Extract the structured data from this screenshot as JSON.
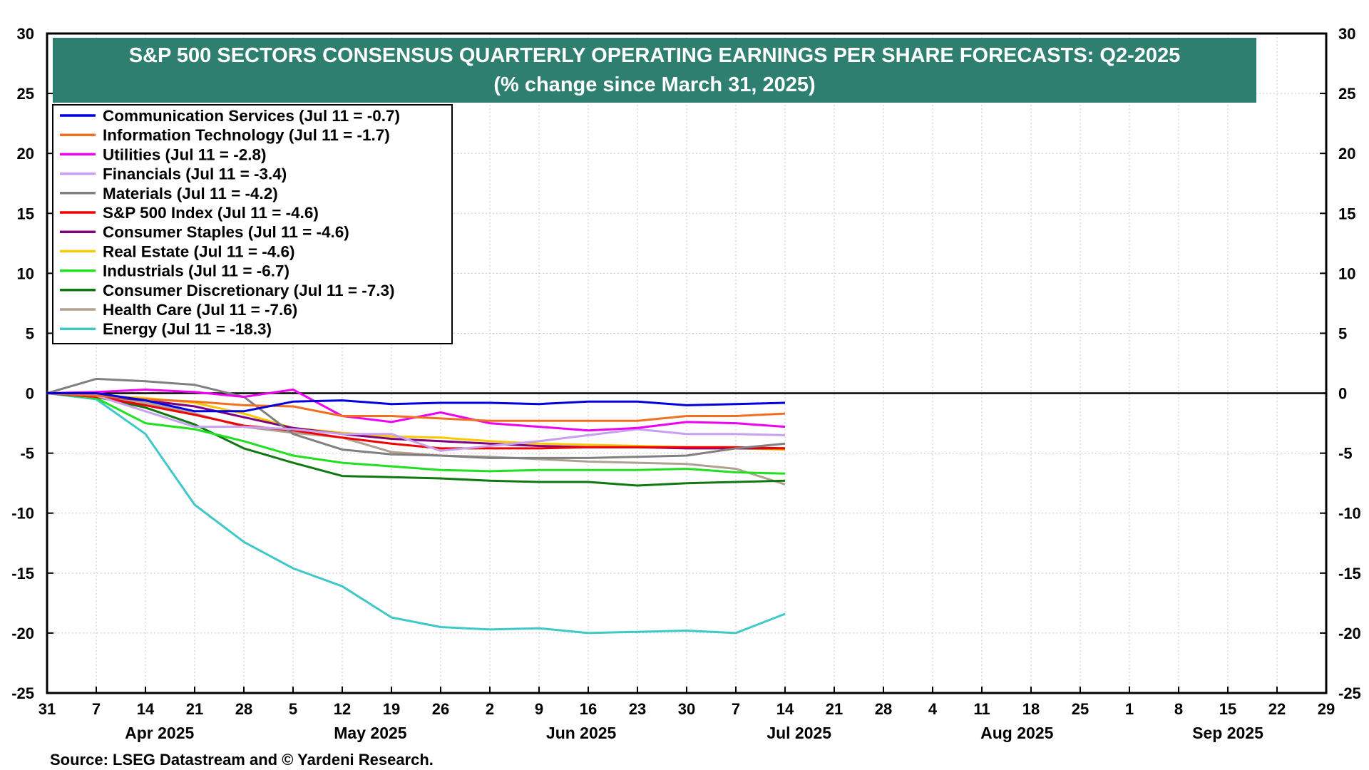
{
  "chart_data": {
    "type": "line",
    "title": "S&P 500 SECTORS CONSENSUS QUARTERLY OPERATING EARNINGS PER SHARE FORECASTS: Q2-2025",
    "subtitle": "(% change since March 31, 2025)",
    "source": "Source: LSEG Datastream and © Yardeni Research.",
    "ylim": [
      -25,
      30
    ],
    "yticks": [
      30,
      25,
      20,
      15,
      10,
      5,
      0,
      -5,
      -10,
      -15,
      -20,
      -25
    ],
    "xlim": [
      "2025-03-31",
      "2025-09-29"
    ],
    "x_tick_labels": [
      "31",
      "7",
      "14",
      "21",
      "28",
      "5",
      "12",
      "19",
      "26",
      "2",
      "9",
      "16",
      "23",
      "30",
      "7",
      "14",
      "21",
      "28",
      "4",
      "11",
      "18",
      "25",
      "1",
      "8",
      "15",
      "22",
      "29"
    ],
    "month_labels": [
      {
        "label": "Apr 2025",
        "center": "2025-04-16"
      },
      {
        "label": "May 2025",
        "center": "2025-05-16"
      },
      {
        "label": "Jun 2025",
        "center": "2025-06-15"
      },
      {
        "label": "Jul 2025",
        "center": "2025-07-16"
      },
      {
        "label": "Aug 2025",
        "center": "2025-08-16"
      },
      {
        "label": "Sep 2025",
        "center": "2025-09-15"
      }
    ],
    "zero_line": 0,
    "grid": true,
    "legend_position": "top-left",
    "x": [
      "2025-03-31",
      "2025-04-07",
      "2025-04-14",
      "2025-04-21",
      "2025-04-28",
      "2025-05-05",
      "2025-05-12",
      "2025-05-19",
      "2025-05-26",
      "2025-06-02",
      "2025-06-09",
      "2025-06-16",
      "2025-06-23",
      "2025-06-30",
      "2025-07-07",
      "2025-07-14"
    ],
    "series": [
      {
        "name": "Communication Services (Jul 11 = -0.7)",
        "color": "#0000e0",
        "values": [
          0,
          0,
          -0.6,
          -1.5,
          -1.5,
          -0.7,
          -0.6,
          -0.9,
          -0.8,
          -0.8,
          -0.9,
          -0.7,
          -0.7,
          -1.0,
          -0.9,
          -0.8
        ]
      },
      {
        "name": "Information Technology (Jul 11 = -1.7)",
        "color": "#f07020",
        "values": [
          0,
          -0.2,
          -0.5,
          -0.7,
          -1.0,
          -1.1,
          -1.9,
          -1.9,
          -2.1,
          -2.3,
          -2.3,
          -2.3,
          -2.3,
          -1.9,
          -1.9,
          -1.7
        ]
      },
      {
        "name": "Utilities (Jul 11 = -2.8)",
        "color": "#f000f0",
        "values": [
          0,
          0.1,
          0.3,
          0.1,
          -0.3,
          0.3,
          -1.9,
          -2.4,
          -1.6,
          -2.5,
          -2.8,
          -3.1,
          -2.9,
          -2.4,
          -2.5,
          -2.8
        ]
      },
      {
        "name": "Financials (Jul 11 = -3.4)",
        "color": "#c8a0f0",
        "values": [
          0,
          -0.2,
          -1.5,
          -2.8,
          -2.8,
          -3.0,
          -3.4,
          -3.4,
          -4.8,
          -4.4,
          -4.0,
          -3.5,
          -3.0,
          -3.4,
          -3.4,
          -3.5
        ]
      },
      {
        "name": "Materials (Jul 11 = -4.2)",
        "color": "#808080",
        "values": [
          0,
          1.2,
          1.0,
          0.7,
          -0.3,
          -3.4,
          -4.7,
          -5.1,
          -5.2,
          -5.4,
          -5.4,
          -5.4,
          -5.3,
          -5.2,
          -4.6,
          -4.2
        ]
      },
      {
        "name": "S&P 500 Index (Jul 11 = -4.6)",
        "color": "#f00000",
        "values": [
          0,
          -0.3,
          -1.0,
          -1.8,
          -2.7,
          -3.1,
          -3.7,
          -4.2,
          -4.6,
          -4.6,
          -4.6,
          -4.5,
          -4.5,
          -4.5,
          -4.5,
          -4.6
        ]
      },
      {
        "name": "Consumer Staples (Jul 11 = -4.6)",
        "color": "#800080",
        "values": [
          0,
          -0.2,
          -0.6,
          -1.1,
          -2.0,
          -2.9,
          -3.4,
          -3.8,
          -4.0,
          -4.2,
          -4.4,
          -4.5,
          -4.5,
          -4.6,
          -4.6,
          -4.6
        ]
      },
      {
        "name": "Real Estate (Jul 11 = -4.6)",
        "color": "#f8c800",
        "values": [
          0,
          -0.2,
          -0.4,
          -0.8,
          -1.7,
          -2.9,
          -3.3,
          -3.6,
          -3.7,
          -4.0,
          -4.2,
          -4.3,
          -4.4,
          -4.5,
          -4.6,
          -4.7
        ]
      },
      {
        "name": "Industrials (Jul 11 = -6.7)",
        "color": "#20e020",
        "values": [
          0,
          -0.4,
          -2.5,
          -3.0,
          -4.0,
          -5.2,
          -5.8,
          -6.1,
          -6.4,
          -6.5,
          -6.4,
          -6.4,
          -6.4,
          -6.3,
          -6.6,
          -6.7
        ]
      },
      {
        "name": "Consumer Discretionary (Jul 11 = -7.3)",
        "color": "#107810",
        "values": [
          0,
          -0.3,
          -1.2,
          -2.6,
          -4.6,
          -5.8,
          -6.9,
          -7.0,
          -7.1,
          -7.3,
          -7.4,
          -7.4,
          -7.7,
          -7.5,
          -7.4,
          -7.3
        ]
      },
      {
        "name": "Health Care (Jul 11 = -7.6)",
        "color": "#b0a090",
        "values": [
          0,
          -0.2,
          -0.8,
          -1.7,
          -2.8,
          -3.3,
          -3.7,
          -4.9,
          -5.2,
          -5.3,
          -5.5,
          -5.7,
          -5.8,
          -5.9,
          -6.3,
          -7.6
        ]
      },
      {
        "name": "Energy (Jul 11 = -18.3)",
        "color": "#40c8c8",
        "values": [
          0,
          -0.5,
          -3.4,
          -9.3,
          -12.4,
          -14.6,
          -16.1,
          -18.7,
          -19.5,
          -19.7,
          -19.6,
          -20.0,
          -19.9,
          -19.8,
          -20.0,
          -18.4
        ]
      }
    ]
  },
  "colors": {
    "title_band": "#2e7f70",
    "title_text": "#ffffff",
    "axis": "#000000",
    "grid": "#c8c8c8"
  }
}
